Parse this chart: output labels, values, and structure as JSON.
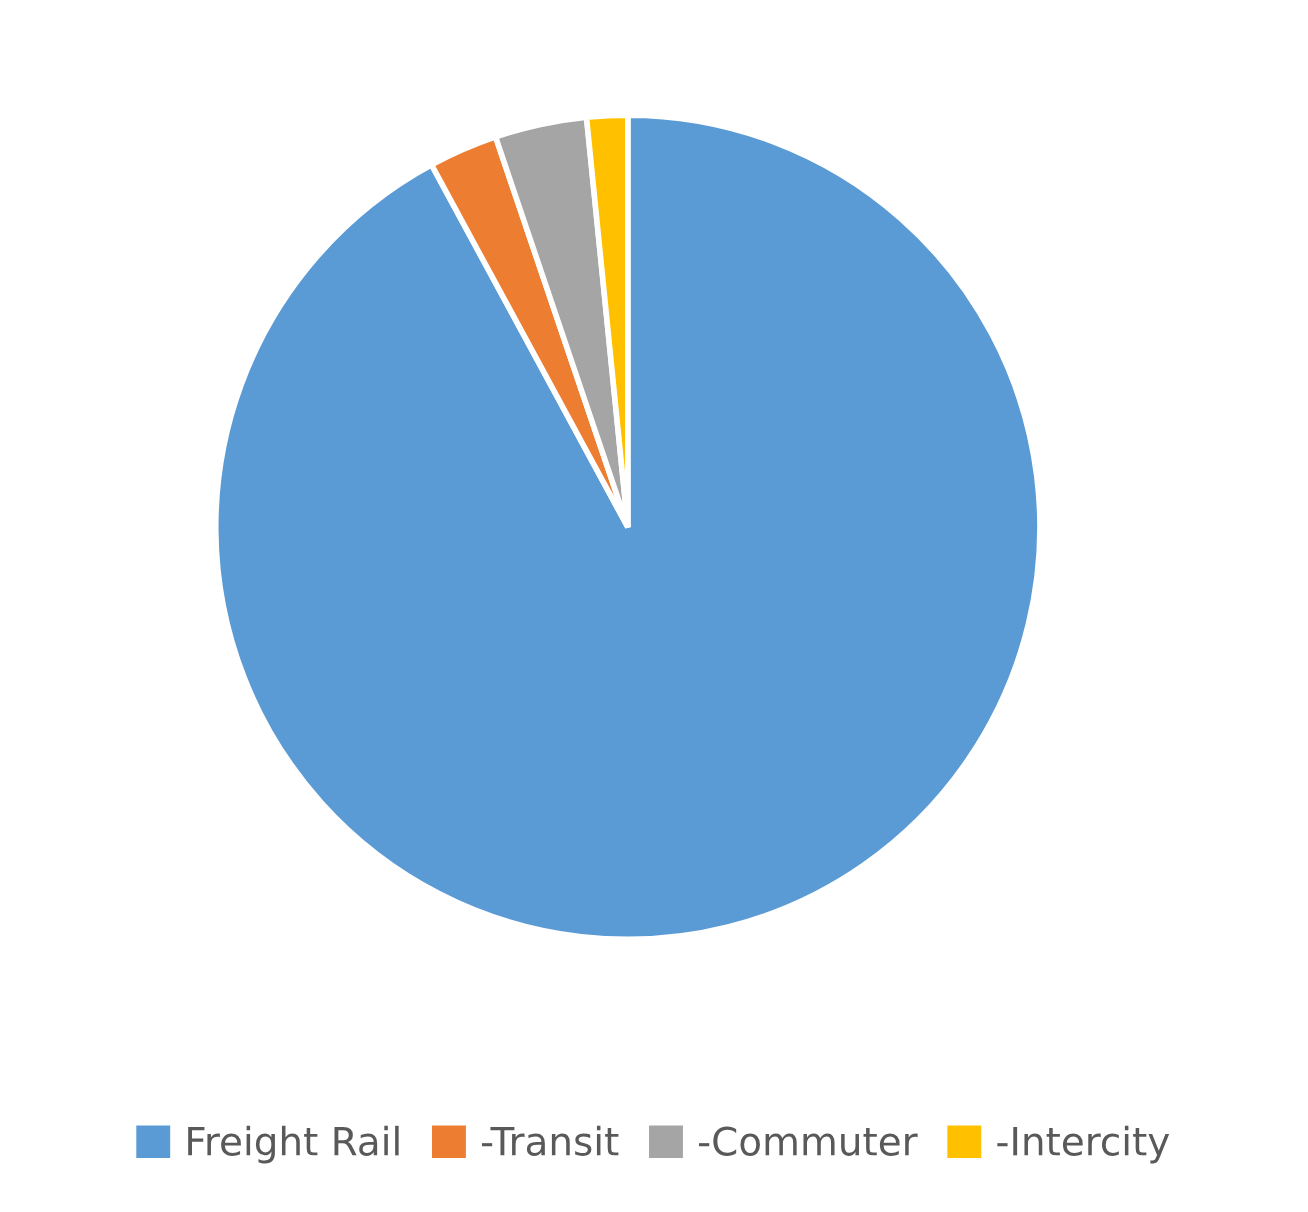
{
  "chart_data": {
    "type": "pie",
    "categories": [
      "Freight Rail",
      "-Transit",
      "-Commuter",
      "-Intercity"
    ],
    "values": [
      92.1,
      2.7,
      3.6,
      1.6
    ],
    "colors": [
      "#5b9bd5",
      "#ed7d31",
      "#a5a5a5",
      "#ffc000"
    ],
    "legend": "bottom"
  }
}
